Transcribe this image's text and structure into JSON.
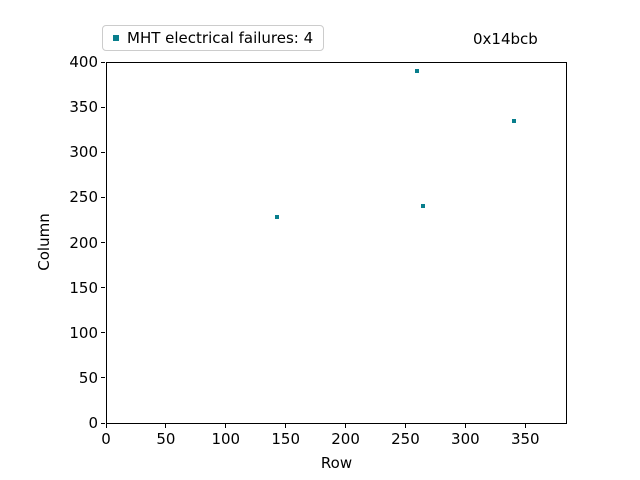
{
  "figure": {
    "legend": {
      "label": "MHT electrical failures: 4",
      "marker_color": "#087e8c"
    },
    "annotation": "0x14bcb"
  },
  "chart_data": {
    "type": "scatter",
    "title": "",
    "xlabel": "Row",
    "ylabel": "Column",
    "xlim": [
      0,
      384
    ],
    "ylim": [
      0,
      400
    ],
    "xticks": [
      0,
      50,
      100,
      150,
      200,
      250,
      300,
      350
    ],
    "yticks": [
      0,
      50,
      100,
      150,
      200,
      250,
      300,
      350,
      400
    ],
    "grid": false,
    "legend_position": "upper left, above plot frame",
    "annotation": "0x14bcb",
    "series": [
      {
        "name": "MHT electrical failures: 4",
        "marker": "square",
        "marker_size_px": 4,
        "color": "#087e8c",
        "points": [
          [
            143,
            228
          ],
          [
            260,
            390
          ],
          [
            265,
            240
          ],
          [
            341,
            335
          ]
        ]
      }
    ]
  }
}
